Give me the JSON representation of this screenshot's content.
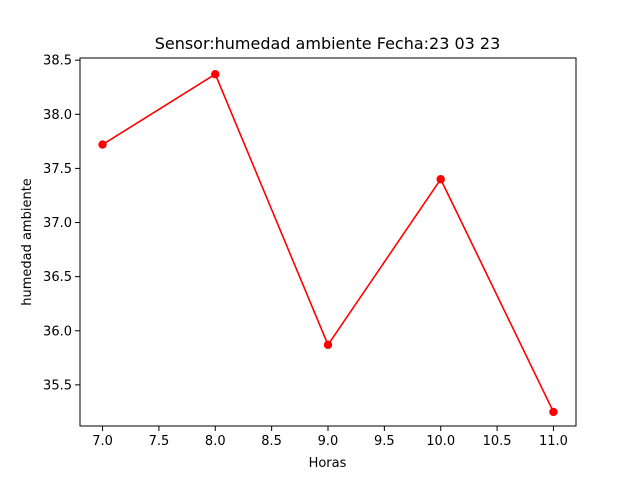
{
  "chart_data": {
    "type": "line",
    "title": "Sensor:humedad ambiente Fecha:23 03 23",
    "xlabel": "Horas",
    "ylabel": "humedad ambiente",
    "x": [
      7.0,
      8.0,
      9.0,
      10.0,
      11.0
    ],
    "series": [
      {
        "values": [
          37.72,
          38.37,
          35.87,
          37.4,
          35.25
        ],
        "color": "#ff0000",
        "marker": "circle"
      }
    ],
    "xlim": [
      6.8,
      11.2
    ],
    "ylim": [
      35.12,
      38.52
    ],
    "xticks": [
      "7.0",
      "7.5",
      "8.0",
      "8.5",
      "9.0",
      "9.5",
      "10.0",
      "10.5",
      "11.0"
    ],
    "yticks": [
      "35.5",
      "36.0",
      "36.5",
      "37.0",
      "37.5",
      "38.0",
      "38.5"
    ],
    "grid": false,
    "legend": "none"
  }
}
